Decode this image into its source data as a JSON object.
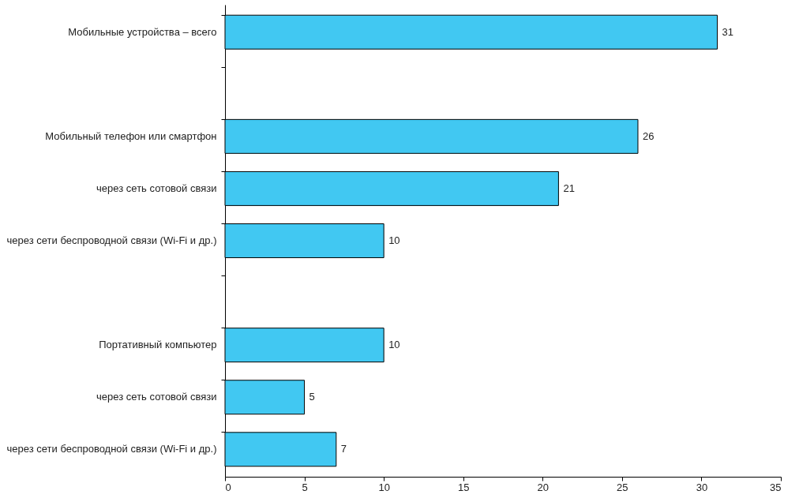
{
  "chart_data": {
    "type": "bar",
    "orientation": "horizontal",
    "categories": [
      "Мобильные устройства – всего",
      null,
      "Мобильный телефон или смартфон",
      "через сеть сотовой связи",
      "через сети беспроводной связи (Wi-Fi и др.)",
      null,
      "Портативный компьютер",
      "через сеть сотовой связи",
      "через сети беспроводной связи (Wi-Fi и др.)"
    ],
    "values": [
      31,
      null,
      26,
      21,
      10,
      null,
      10,
      5,
      7
    ],
    "color": "#41c8f2",
    "xlim": [
      0,
      35
    ],
    "xticks": [
      0,
      5,
      10,
      15,
      20,
      25,
      30,
      35
    ],
    "grid": false,
    "data_labels": true
  }
}
